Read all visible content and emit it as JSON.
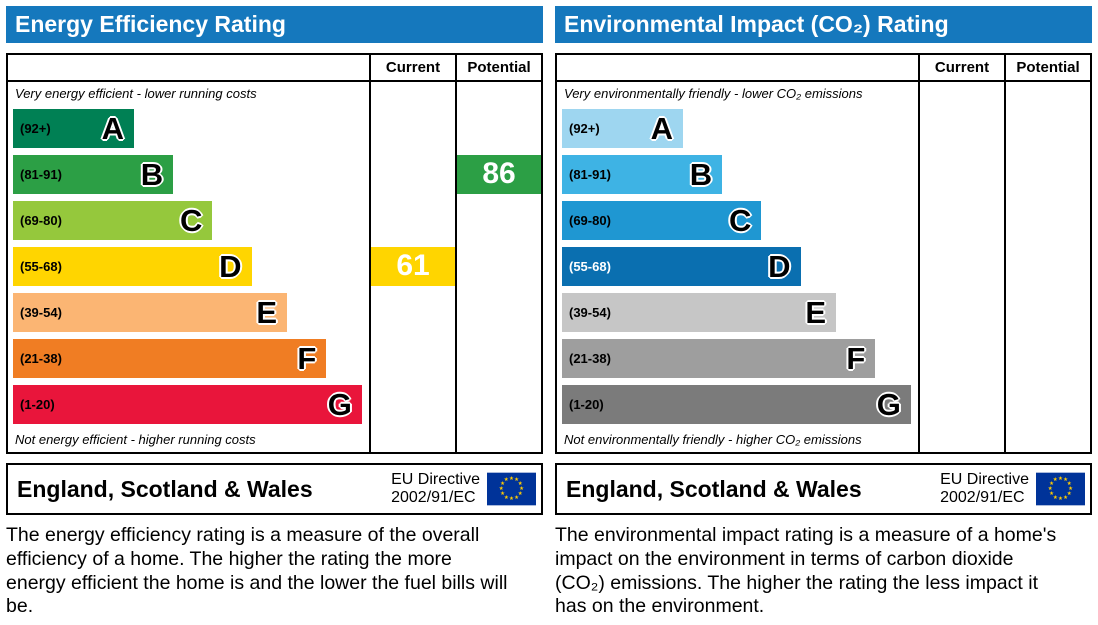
{
  "chart_data": [
    {
      "type": "bar",
      "title": "Energy Efficiency Rating",
      "columns": [
        "Current",
        "Potential"
      ],
      "top_note": "Very energy efficient - lower running costs",
      "bottom_note": "Not energy efficient - higher running costs",
      "bands": [
        {
          "letter": "A",
          "range": "(92+)",
          "color": "#008054",
          "width_pct": 34,
          "text_color": "#000000"
        },
        {
          "letter": "B",
          "range": "(81-91)",
          "color": "#2c9f45",
          "width_pct": 45,
          "text_color": "#000000"
        },
        {
          "letter": "C",
          "range": "(69-80)",
          "color": "#95c83c",
          "width_pct": 56,
          "text_color": "#000000"
        },
        {
          "letter": "D",
          "range": "(55-68)",
          "color": "#ffd500",
          "width_pct": 67,
          "text_color": "#000000"
        },
        {
          "letter": "E",
          "range": "(39-54)",
          "color": "#fbb573",
          "width_pct": 77,
          "text_color": "#000000"
        },
        {
          "letter": "F",
          "range": "(21-38)",
          "color": "#f07d23",
          "width_pct": 88,
          "text_color": "#000000"
        },
        {
          "letter": "G",
          "range": "(1-20)",
          "color": "#e9153b",
          "width_pct": 98,
          "text_color": "#000000"
        }
      ],
      "current": {
        "value": "61",
        "band": "D",
        "color": "#ffd500"
      },
      "potential": {
        "value": "86",
        "band": "B",
        "color": "#2c9f45"
      },
      "footer_region": "England, Scotland & Wales",
      "footer_directive": [
        "EU Directive",
        "2002/91/EC"
      ],
      "description": "The energy efficiency rating is a measure of the overall efficiency of a home. The higher the rating the more energy efficient the home is and the lower the fuel bills will be."
    },
    {
      "type": "bar",
      "title": "Environmental Impact (CO₂) Rating",
      "columns": [
        "Current",
        "Potential"
      ],
      "top_note": "Very environmentally friendly - lower CO₂ emissions",
      "bottom_note": "Not environmentally friendly - higher CO₂ emissions",
      "bands": [
        {
          "letter": "A",
          "range": "(92+)",
          "color": "#9ed6f0",
          "width_pct": 34,
          "text_color": "#000000"
        },
        {
          "letter": "B",
          "range": "(81-91)",
          "color": "#3eb3e4",
          "width_pct": 45,
          "text_color": "#000000"
        },
        {
          "letter": "C",
          "range": "(69-80)",
          "color": "#1f97d2",
          "width_pct": 56,
          "text_color": "#000000"
        },
        {
          "letter": "D",
          "range": "(55-68)",
          "color": "#0a6fb0",
          "width_pct": 67,
          "text_color": "#ffffff"
        },
        {
          "letter": "E",
          "range": "(39-54)",
          "color": "#c6c6c6",
          "width_pct": 77,
          "text_color": "#000000"
        },
        {
          "letter": "F",
          "range": "(21-38)",
          "color": "#9e9e9e",
          "width_pct": 88,
          "text_color": "#000000"
        },
        {
          "letter": "G",
          "range": "(1-20)",
          "color": "#7b7b7b",
          "width_pct": 98,
          "text_color": "#000000"
        }
      ],
      "current": {
        "value": "",
        "band": "",
        "color": ""
      },
      "potential": {
        "value": "",
        "band": "",
        "color": ""
      },
      "footer_region": "England, Scotland & Wales",
      "footer_directive": [
        "EU Directive",
        "2002/91/EC"
      ],
      "description": "The environmental impact rating is a measure of a home's impact on the environment in terms of carbon dioxide (CO₂) emissions. The higher the rating the less impact it has on the environment."
    }
  ]
}
